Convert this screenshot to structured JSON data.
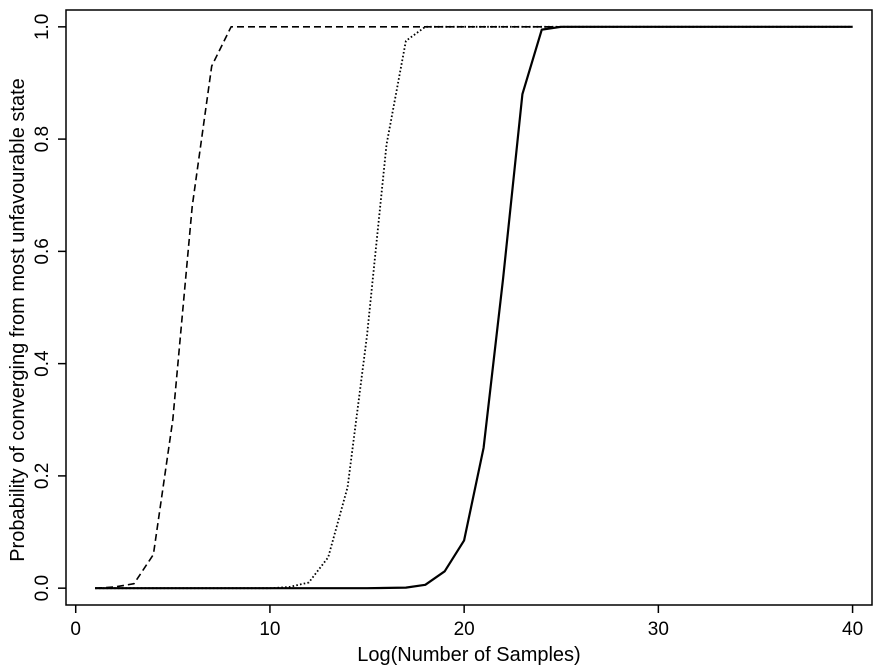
{
  "chart_data": {
    "type": "line",
    "title": "",
    "xlabel": "Log(Number of Samples)",
    "ylabel": "Probability of converging from most unfavourable state",
    "xlim": [
      -0.5,
      41
    ],
    "ylim": [
      -0.03,
      1.03
    ],
    "xticks": [
      0,
      10,
      20,
      30,
      40
    ],
    "xtick_labels": [
      "0",
      "10",
      "20",
      "30",
      "40"
    ],
    "yticks": [
      0.0,
      0.2,
      0.4,
      0.6,
      0.8,
      1.0
    ],
    "ytick_labels": [
      "0.0",
      "0.2",
      "0.4",
      "0.6",
      "0.8",
      "1.0"
    ],
    "grid": false,
    "legend": "none",
    "series": [
      {
        "style": "dashed",
        "color": "#000000",
        "x": [
          1,
          2,
          3,
          4,
          5,
          6,
          7,
          8,
          9,
          10,
          20,
          30,
          40
        ],
        "y": [
          0.0,
          0.002,
          0.008,
          0.06,
          0.3,
          0.68,
          0.93,
          1.0,
          1.0,
          1.0,
          1.0,
          1.0,
          1.0
        ]
      },
      {
        "style": "dotted",
        "color": "#000000",
        "x": [
          1,
          5,
          10,
          11,
          12,
          13,
          14,
          15,
          16,
          17,
          18,
          19,
          20,
          30,
          40
        ],
        "y": [
          0.0,
          0.0,
          0.0,
          0.002,
          0.01,
          0.055,
          0.18,
          0.45,
          0.79,
          0.975,
          1.0,
          1.0,
          1.0,
          1.0,
          1.0
        ]
      },
      {
        "style": "solid",
        "color": "#000000",
        "x": [
          1,
          5,
          10,
          15,
          17,
          18,
          19,
          20,
          21,
          22,
          23,
          24,
          25,
          30,
          40
        ],
        "y": [
          0.0,
          0.0,
          0.0,
          0.0,
          0.001,
          0.006,
          0.03,
          0.085,
          0.25,
          0.55,
          0.88,
          0.995,
          1.0,
          1.0,
          1.0
        ]
      }
    ]
  }
}
